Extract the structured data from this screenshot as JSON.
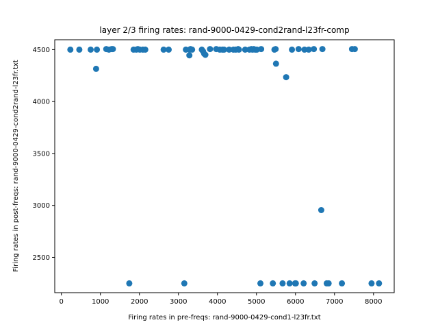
{
  "chart_data": {
    "type": "scatter",
    "title": "layer 2/3 firing rates: rand-9000-0429-cond2rand-l23fr-comp",
    "xlabel": "Firing rates in pre-freqs: rand-9000-0429-cond1-l23fr.txt",
    "ylabel": "Firing rates in post-freqs: rand-9000-0429-cond2rand-l23fr.txt",
    "xlim": [
      -170,
      8530
    ],
    "ylim": [
      2160,
      4595
    ],
    "xticks": [
      0,
      1000,
      2000,
      3000,
      4000,
      5000,
      6000,
      7000,
      8000
    ],
    "yticks": [
      2500,
      3000,
      3500,
      4000,
      4500
    ],
    "xticklabels": [
      "0",
      "1000",
      "2000",
      "3000",
      "4000",
      "5000",
      "6000",
      "7000",
      "8000"
    ],
    "yticklabels": [
      "2500",
      "3000",
      "3500",
      "4000",
      "4500"
    ],
    "grid": false,
    "marker_color": "#1f77b4",
    "x": [
      230,
      460,
      750,
      890,
      910,
      1150,
      1220,
      1290,
      1320,
      1740,
      1850,
      1920,
      1960,
      2010,
      2090,
      2150,
      2620,
      2750,
      3150,
      3190,
      3280,
      3290,
      3310,
      3350,
      3600,
      3630,
      3660,
      3690,
      3810,
      3970,
      4060,
      4130,
      4170,
      4300,
      4410,
      4470,
      4530,
      4550,
      4710,
      4820,
      4870,
      4900,
      4930,
      4970,
      5010,
      5100,
      5120,
      5420,
      5460,
      5490,
      5500,
      5670,
      5760,
      5850,
      5910,
      5990,
      6010,
      6080,
      6210,
      6230,
      6340,
      6470,
      6490,
      6660,
      6690,
      6800,
      6850,
      7190,
      7450,
      7520,
      7950,
      8140
    ],
    "y": [
      4500,
      4500,
      4500,
      4315,
      4500,
      4505,
      4500,
      4505,
      4505,
      2250,
      4500,
      4500,
      4505,
      4500,
      4500,
      4500,
      4500,
      4500,
      2250,
      4500,
      4445,
      4500,
      4505,
      4500,
      4500,
      4485,
      4460,
      4450,
      4505,
      4505,
      4500,
      4500,
      4500,
      4500,
      4500,
      4500,
      4505,
      4500,
      4500,
      4500,
      4505,
      4500,
      4505,
      4500,
      4500,
      2250,
      4505,
      2250,
      4500,
      4505,
      4365,
      2250,
      4235,
      2250,
      4500,
      2250,
      2250,
      4505,
      2250,
      4500,
      4500,
      4505,
      2250,
      2955,
      4505,
      2250,
      2250,
      2250,
      4505,
      4505,
      2250,
      2250
    ]
  }
}
